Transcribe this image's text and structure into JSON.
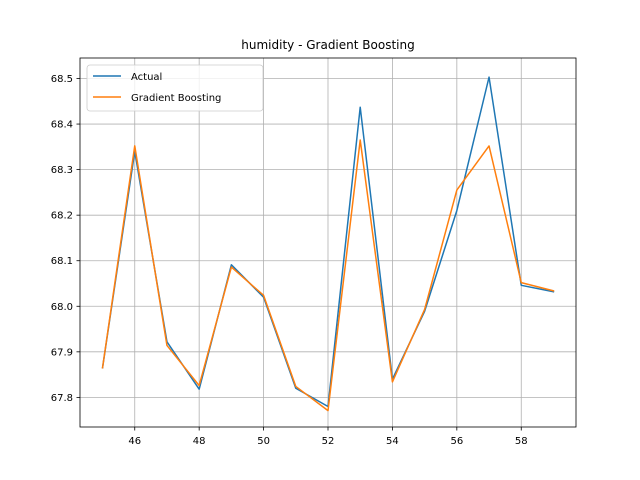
{
  "chart_data": {
    "type": "line",
    "title": "humidity - Gradient Boosting",
    "xlabel": "",
    "ylabel": "",
    "xlim": [
      44.3,
      59.7
    ],
    "ylim": [
      67.735,
      68.545
    ],
    "x_ticks": [
      46,
      48,
      50,
      52,
      54,
      56,
      58
    ],
    "y_ticks": [
      67.8,
      67.9,
      68.0,
      68.1,
      68.2,
      68.3,
      68.4,
      68.5
    ],
    "grid": true,
    "legend_position": "top-left",
    "x": [
      45,
      46,
      47,
      48,
      49,
      50,
      51,
      52,
      53,
      54,
      55,
      56,
      57,
      58,
      59
    ],
    "series": [
      {
        "name": "Actual",
        "color": "#1f77b4",
        "values": [
          67.865,
          68.34,
          67.922,
          67.818,
          68.091,
          68.02,
          67.82,
          67.78,
          68.437,
          67.84,
          67.989,
          68.21,
          68.503,
          68.046,
          68.032
        ]
      },
      {
        "name": "Gradient Boosting",
        "color": "#ff7f0e",
        "values": [
          67.865,
          68.352,
          67.914,
          67.826,
          68.086,
          68.024,
          67.824,
          67.771,
          68.365,
          67.834,
          67.993,
          68.255,
          68.352,
          68.052,
          68.034
        ]
      }
    ]
  }
}
